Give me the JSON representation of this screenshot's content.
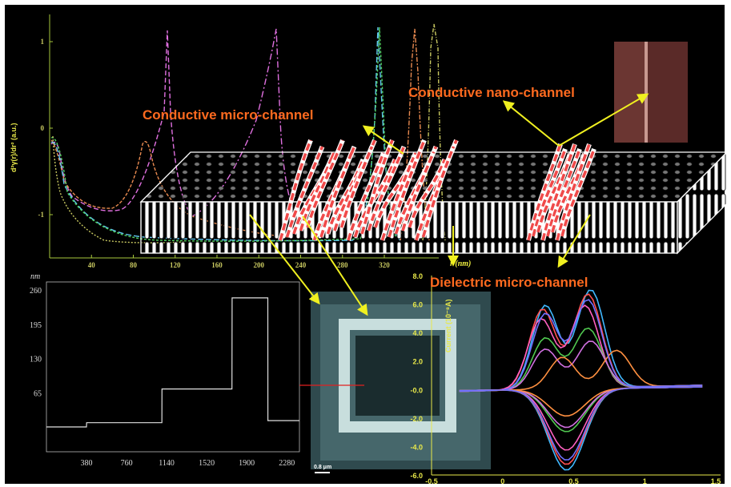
{
  "labels": {
    "conductive_micro": "Conductive micro-channel",
    "conductive_nano": "Conductive nano-channel",
    "dielectric_micro": "Dielectric micro-channel"
  },
  "colors": {
    "label": "#ff6a1f",
    "arrow": "#f0f020",
    "top_axis": "#a8c83c",
    "cv_axis": "#e8e84a"
  },
  "chart_data": [
    {
      "type": "line",
      "name_position": "top",
      "xlabel": "r (nm)",
      "ylabel": "d²γ(r)/dr² (a.u.)",
      "x_ticks": [
        "40",
        "80",
        "120",
        "160",
        "200",
        "240",
        "280",
        "320"
      ],
      "y_ticks": [
        "1",
        "0",
        "-1"
      ],
      "xlim": [
        0,
        330
      ],
      "ylim": [
        -1.35,
        1.25
      ],
      "series_colors": [
        "#e070e0",
        "#e88a50",
        "#60c8f0",
        "#50d060",
        "#c8c860"
      ]
    },
    {
      "type": "line",
      "name_position": "bottom-left",
      "ylabel": "nm",
      "x_ticks": [
        "380",
        "760",
        "1140",
        "1520",
        "1900",
        "2280"
      ],
      "y_ticks": [
        "260",
        "195",
        "130",
        "65"
      ],
      "x": [
        0,
        380,
        381,
        1095,
        1096,
        1760,
        1761,
        2100,
        2101,
        2400
      ],
      "y": [
        0,
        0,
        8,
        8,
        72,
        72,
        245,
        245,
        12,
        12
      ]
    },
    {
      "type": "line",
      "name_position": "bottom-right",
      "ylabel": "Current (10⁻⁸A)",
      "x_ticks": [
        "-0.5",
        "0",
        "0.5",
        "1",
        "1.5"
      ],
      "y_ticks": [
        "8.0",
        "6.0",
        "4.0",
        "2.0",
        "-0.0",
        "-2.0",
        "-4.0",
        "-6.0"
      ],
      "xlim": [
        -0.5,
        1.5
      ],
      "ylim": [
        -6,
        8
      ],
      "series_colors": [
        "#40b8ff",
        "#ff5050",
        "#ff60c0",
        "#50c850",
        "#d070e0",
        "#ff9040",
        "#7070ff"
      ]
    }
  ],
  "scale_bar": "0.8 μm"
}
